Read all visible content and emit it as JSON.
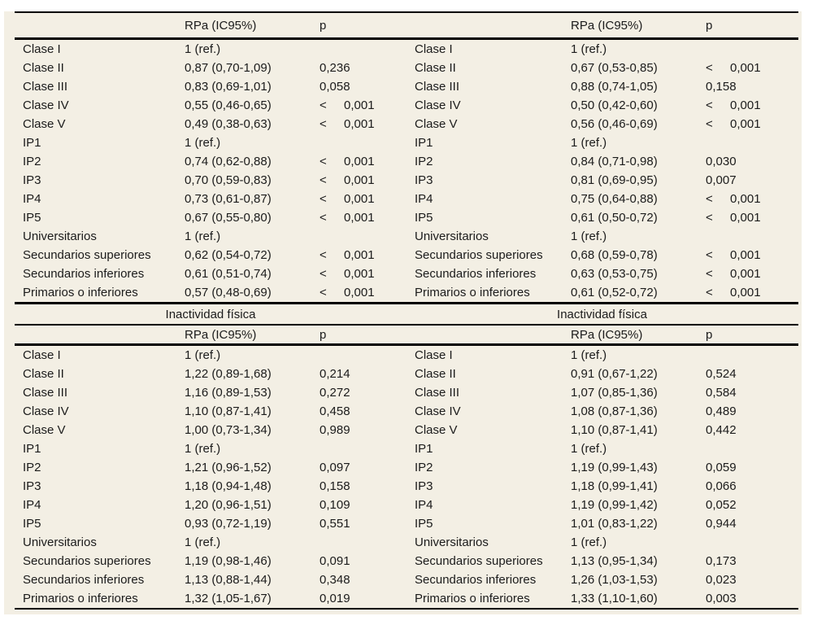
{
  "meta": {
    "background_color": "#ffffff",
    "sheet_color": "#f3efe4",
    "rule_color": "#000000",
    "text_color": "#1b1b1b"
  },
  "sections": {
    "top": {
      "left": {
        "header": {
          "rpa": "RPa (IC95%)",
          "p": "p"
        },
        "rows": [
          {
            "label": "Clase I",
            "rpa": "1 (ref.)",
            "p_prefix": "",
            "p_value": ""
          },
          {
            "label": "Clase II",
            "rpa": "0,87 (0,70-1,09)",
            "p_prefix": "",
            "p_value": "0,236"
          },
          {
            "label": "Clase III",
            "rpa": "0,83 (0,69-1,01)",
            "p_prefix": "",
            "p_value": "0,058"
          },
          {
            "label": "Clase IV",
            "rpa": "0,55 (0,46-0,65)",
            "p_prefix": "<",
            "p_value": "0,001"
          },
          {
            "label": "Clase V",
            "rpa": "0,49 (0,38-0,63)",
            "p_prefix": "<",
            "p_value": "0,001"
          },
          {
            "label": "IP1",
            "rpa": "1 (ref.)",
            "p_prefix": "",
            "p_value": ""
          },
          {
            "label": "IP2",
            "rpa": "0,74 (0,62-0,88)",
            "p_prefix": "<",
            "p_value": "0,001"
          },
          {
            "label": "IP3",
            "rpa": "0,70 (0,59-0,83)",
            "p_prefix": "<",
            "p_value": "0,001"
          },
          {
            "label": "IP4",
            "rpa": "0,73 (0,61-0,87)",
            "p_prefix": "<",
            "p_value": "0,001"
          },
          {
            "label": "IP5",
            "rpa": "0,67 (0,55-0,80)",
            "p_prefix": "<",
            "p_value": "0,001"
          },
          {
            "label": "Universitarios",
            "rpa": "1 (ref.)",
            "p_prefix": "",
            "p_value": ""
          },
          {
            "label": "Secundarios superiores",
            "rpa": "0,62 (0,54-0,72)",
            "p_prefix": "<",
            "p_value": "0,001"
          },
          {
            "label": "Secundarios inferiores",
            "rpa": "0,61 (0,51-0,74)",
            "p_prefix": "<",
            "p_value": "0,001"
          },
          {
            "label": "Primarios o inferiores",
            "rpa": "0,57 (0,48-0,69)",
            "p_prefix": "<",
            "p_value": "0,001"
          }
        ]
      },
      "right": {
        "header": {
          "rpa": "RPa (IC95%)",
          "p": "p"
        },
        "rows": [
          {
            "label": "Clase I",
            "rpa": "1 (ref.)",
            "p_prefix": "",
            "p_value": ""
          },
          {
            "label": "Clase II",
            "rpa": "0,67 (0,53-0,85)",
            "p_prefix": "<",
            "p_value": "0,001"
          },
          {
            "label": "Clase III",
            "rpa": "0,88 (0,74-1,05)",
            "p_prefix": "",
            "p_value": "0,158"
          },
          {
            "label": "Clase IV",
            "rpa": "0,50 (0,42-0,60)",
            "p_prefix": "<",
            "p_value": "0,001"
          },
          {
            "label": "Clase V",
            "rpa": "0,56 (0,46-0,69)",
            "p_prefix": "<",
            "p_value": "0,001"
          },
          {
            "label": "IP1",
            "rpa": "1 (ref.)",
            "p_prefix": "",
            "p_value": ""
          },
          {
            "label": "IP2",
            "rpa": "0,84 (0,71-0,98)",
            "p_prefix": "",
            "p_value": "0,030"
          },
          {
            "label": "IP3",
            "rpa": "0,81 (0,69-0,95)",
            "p_prefix": "",
            "p_value": "0,007"
          },
          {
            "label": "IP4",
            "rpa": "0,75 (0,64-0,88)",
            "p_prefix": "<",
            "p_value": "0,001"
          },
          {
            "label": "IP5",
            "rpa": "0,61 (0,50-0,72)",
            "p_prefix": "<",
            "p_value": "0,001"
          },
          {
            "label": "Universitarios",
            "rpa": "1 (ref.)",
            "p_prefix": "",
            "p_value": ""
          },
          {
            "label": "Secundarios superiores",
            "rpa": "0,68 (0,59-0,78)",
            "p_prefix": "<",
            "p_value": "0,001"
          },
          {
            "label": "Secundarios inferiores",
            "rpa": "0,63 (0,53-0,75)",
            "p_prefix": "<",
            "p_value": "0,001"
          },
          {
            "label": "Primarios o inferiores",
            "rpa": "0,61 (0,52-0,72)",
            "p_prefix": "<",
            "p_value": "0,001"
          }
        ]
      }
    },
    "bottom": {
      "left": {
        "title": "Inactividad física",
        "header": {
          "rpa": "RPa (IC95%)",
          "p": "p"
        },
        "rows": [
          {
            "label": "Clase I",
            "rpa": "1 (ref.)",
            "p_prefix": "",
            "p_value": ""
          },
          {
            "label": "Clase II",
            "rpa": "1,22 (0,89-1,68)",
            "p_prefix": "",
            "p_value": "0,214"
          },
          {
            "label": "Clase III",
            "rpa": "1,16 (0,89-1,53)",
            "p_prefix": "",
            "p_value": "0,272"
          },
          {
            "label": "Clase IV",
            "rpa": "1,10 (0,87-1,41)",
            "p_prefix": "",
            "p_value": "0,458"
          },
          {
            "label": "Clase V",
            "rpa": "1,00 (0,73-1,34)",
            "p_prefix": "",
            "p_value": "0,989"
          },
          {
            "label": "IP1",
            "rpa": "1 (ref.)",
            "p_prefix": "",
            "p_value": ""
          },
          {
            "label": "IP2",
            "rpa": "1,21 (0,96-1,52)",
            "p_prefix": "",
            "p_value": "0,097"
          },
          {
            "label": "IP3",
            "rpa": "1,18 (0,94-1,48)",
            "p_prefix": "",
            "p_value": "0,158"
          },
          {
            "label": "IP4",
            "rpa": "1,20 (0,96-1,51)",
            "p_prefix": "",
            "p_value": "0,109"
          },
          {
            "label": "IP5",
            "rpa": "0,93 (0,72-1,19)",
            "p_prefix": "",
            "p_value": "0,551"
          },
          {
            "label": "Universitarios",
            "rpa": "1 (ref.)",
            "p_prefix": "",
            "p_value": ""
          },
          {
            "label": "Secundarios superiores",
            "rpa": "1,19 (0,98-1,46)",
            "p_prefix": "",
            "p_value": "0,091"
          },
          {
            "label": "Secundarios inferiores",
            "rpa": "1,13 (0,88-1,44)",
            "p_prefix": "",
            "p_value": "0,348"
          },
          {
            "label": "Primarios o inferiores",
            "rpa": "1,32 (1,05-1,67)",
            "p_prefix": "",
            "p_value": "0,019"
          }
        ]
      },
      "right": {
        "title": "Inactividad física",
        "header": {
          "rpa": "RPa (IC95%)",
          "p": "p"
        },
        "rows": [
          {
            "label": "Clase I",
            "rpa": "1 (ref.)",
            "p_prefix": "",
            "p_value": ""
          },
          {
            "label": "Clase II",
            "rpa": "0,91 (0,67-1,22)",
            "p_prefix": "",
            "p_value": "0,524"
          },
          {
            "label": "Clase III",
            "rpa": "1,07 (0,85-1,36)",
            "p_prefix": "",
            "p_value": "0,584"
          },
          {
            "label": "Clase IV",
            "rpa": "1,08 (0,87-1,36)",
            "p_prefix": "",
            "p_value": "0,489"
          },
          {
            "label": "Clase V",
            "rpa": "1,10 (0,87-1,41)",
            "p_prefix": "",
            "p_value": "0,442"
          },
          {
            "label": "IP1",
            "rpa": "1 (ref.)",
            "p_prefix": "",
            "p_value": ""
          },
          {
            "label": "IP2",
            "rpa": "1,19 (0,99-1,43)",
            "p_prefix": "",
            "p_value": "0,059"
          },
          {
            "label": "IP3",
            "rpa": "1,18 (0,99-1,41)",
            "p_prefix": "",
            "p_value": "0,066"
          },
          {
            "label": "IP4",
            "rpa": "1,19 (0,99-1,42)",
            "p_prefix": "",
            "p_value": "0,052"
          },
          {
            "label": "IP5",
            "rpa": "1,01 (0,83-1,22)",
            "p_prefix": "",
            "p_value": "0,944"
          },
          {
            "label": "Universitarios",
            "rpa": "1 (ref.)",
            "p_prefix": "",
            "p_value": ""
          },
          {
            "label": "Secundarios superiores",
            "rpa": "1,13 (0,95-1,34)",
            "p_prefix": "",
            "p_value": "0,173"
          },
          {
            "label": "Secundarios inferiores",
            "rpa": "1,26 (1,03-1,53)",
            "p_prefix": "",
            "p_value": "0,023"
          },
          {
            "label": "Primarios o inferiores",
            "rpa": "1,33 (1,10-1,60)",
            "p_prefix": "",
            "p_value": "0,003"
          }
        ]
      }
    }
  }
}
